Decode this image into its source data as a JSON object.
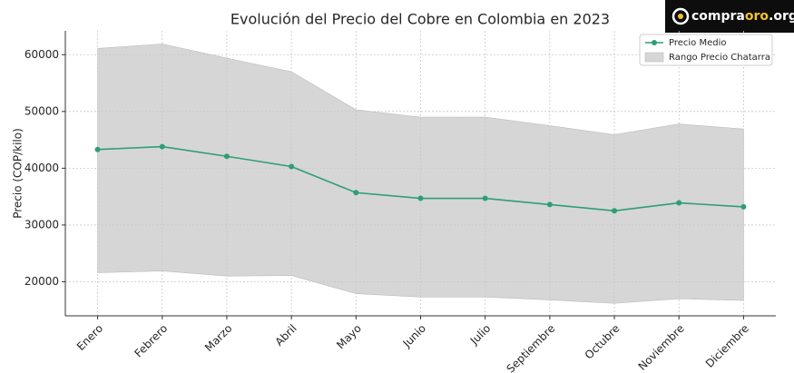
{
  "chart_data": {
    "type": "line",
    "title": "Evolución del Precio del Cobre en Colombia en 2023",
    "y_label": "Precio (COP/kilo)",
    "categories": [
      "Enero",
      "Febrero",
      "Marzo",
      "Abril",
      "Mayo",
      "Junio",
      "Julio",
      "Septiembre",
      "Octubre",
      "Noviembre",
      "Diciembre"
    ],
    "series": [
      {
        "name": "Precio Medio",
        "color": "#2e9e74",
        "values": [
          43300,
          43800,
          42100,
          40300,
          35700,
          34700,
          34700,
          33600,
          32500,
          33900,
          33200
        ]
      }
    ],
    "band": {
      "name": "Rango Precio Chatarra",
      "color": "#d6d6d6",
      "upper": [
        61100,
        61900,
        59400,
        57000,
        50300,
        49000,
        49000,
        47500,
        45900,
        47800,
        46900
      ],
      "lower": [
        21600,
        21900,
        21000,
        21100,
        17900,
        17300,
        17300,
        16800,
        16200,
        17000,
        16700
      ]
    },
    "ylim": [
      14000,
      64200
    ],
    "yticks": [
      20000,
      30000,
      40000,
      50000,
      60000
    ],
    "grid": true,
    "legend": "upper right"
  },
  "logo": {
    "parts": [
      "compra",
      "oro",
      ".org"
    ]
  }
}
